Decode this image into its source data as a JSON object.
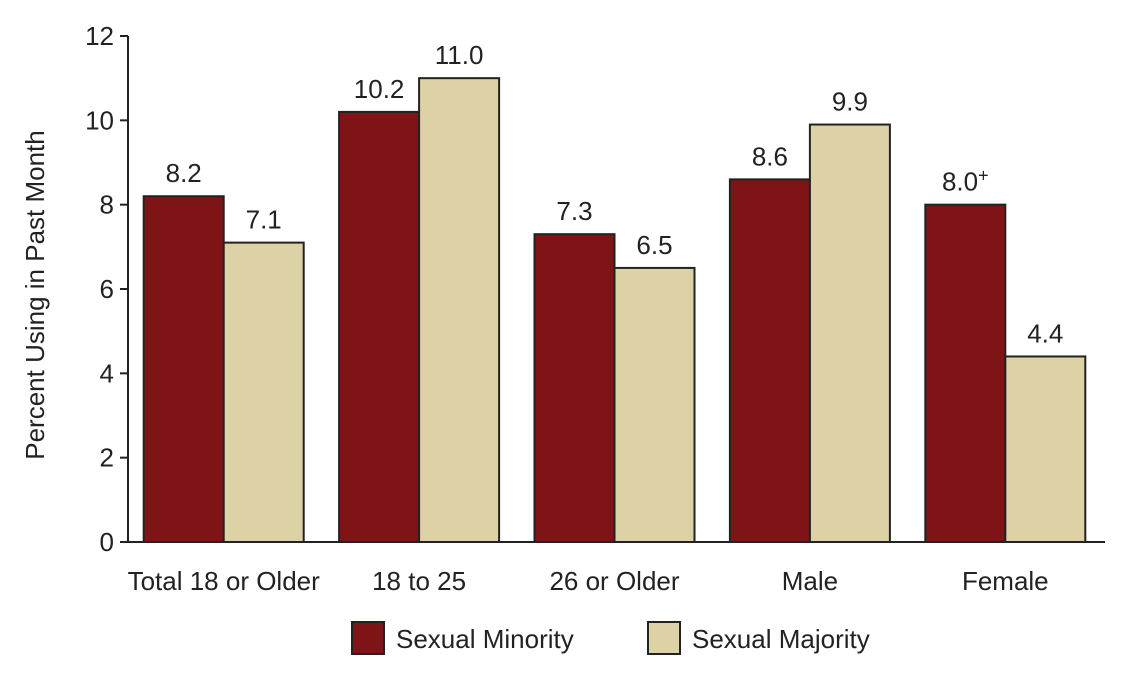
{
  "chart_data": {
    "type": "bar",
    "ylabel": "Percent Using in Past Month",
    "ylim": [
      0,
      12
    ],
    "yticks": [
      0,
      2,
      4,
      6,
      8,
      10,
      12
    ],
    "categories": [
      "Total 18 or Older",
      "18 to 25",
      "26 or Older",
      "Male",
      "Female"
    ],
    "series": [
      {
        "name": "Sexual Minority",
        "color": "#7f1416",
        "values": [
          8.2,
          10.2,
          7.3,
          8.6,
          8.0
        ],
        "labels": [
          "8.2",
          "10.2",
          "7.3",
          "8.6",
          "8.0+"
        ]
      },
      {
        "name": "Sexual Majority",
        "color": "#ddd1a6",
        "values": [
          7.1,
          11.0,
          6.5,
          9.9,
          4.4
        ],
        "labels": [
          "7.1",
          "11.0",
          "6.5",
          "9.9",
          "4.4"
        ]
      }
    ],
    "legend_position": "bottom-center",
    "grid": false
  }
}
